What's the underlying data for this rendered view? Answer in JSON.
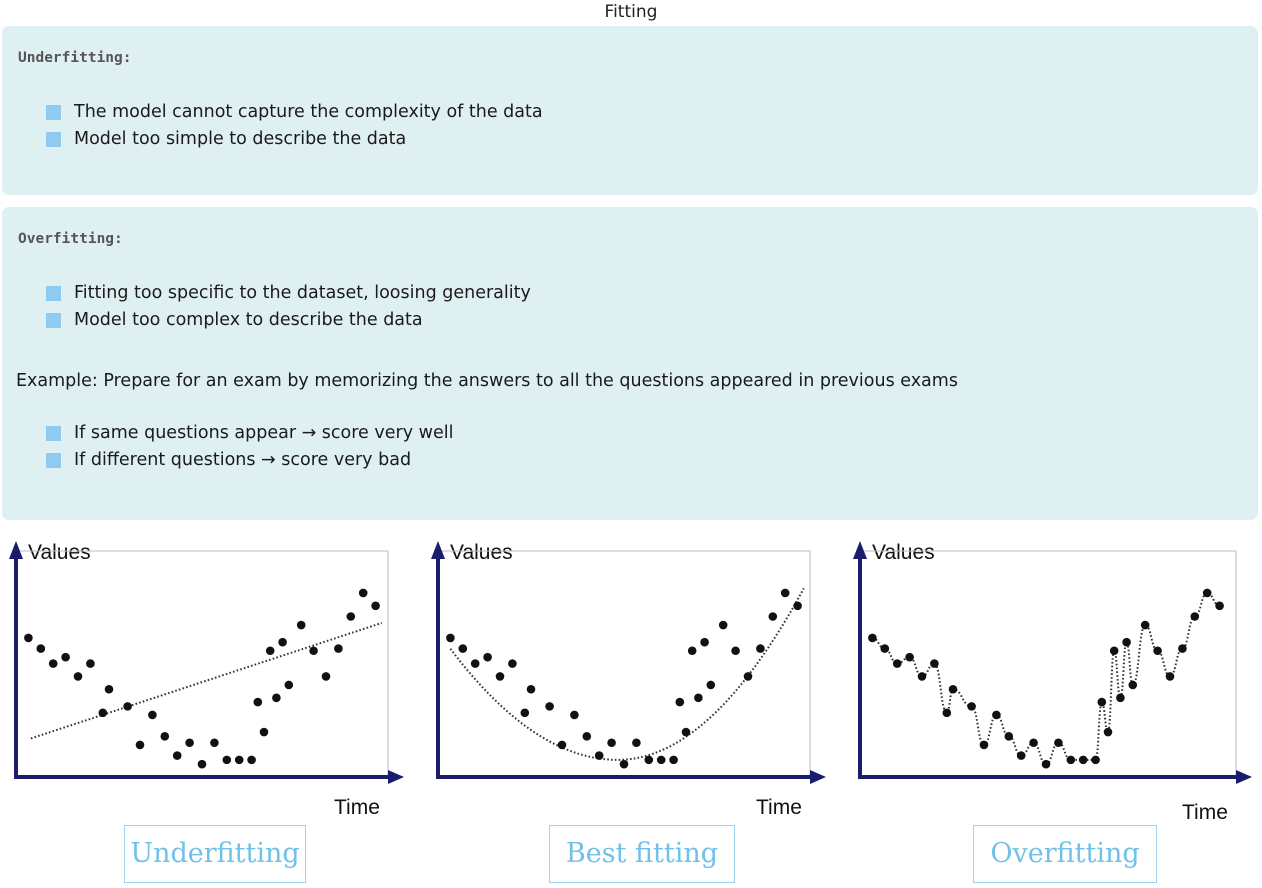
{
  "title": "Fitting",
  "underfitting_box": {
    "heading": "Underfitting:",
    "bullets": [
      "The model cannot capture the complexity of the data",
      "Model too simple to describe the data"
    ]
  },
  "overfitting_box": {
    "heading": "Overfitting:",
    "bullets": [
      "Fitting too specific to the dataset, loosing generality",
      "Model too complex to describe the data"
    ],
    "example": "Example: Prepare for an exam by memorizing the answers to all the questions appeared in previous exams",
    "example_bullets": [
      "If same questions appear → score very well",
      "If different questions → score very bad"
    ]
  },
  "colors": {
    "box_bg": "#dff0f3",
    "bullet": "#8fcaf0",
    "caption": "#6fc1ea",
    "axis": "#1c1c6e"
  },
  "panels": [
    {
      "y_label": "Values",
      "x_label": "Time",
      "caption": "Underfitting"
    },
    {
      "y_label": "Values",
      "x_label": "Time",
      "caption": "Best fitting"
    },
    {
      "y_label": "Values",
      "x_label": "Time",
      "caption": "Overfitting"
    }
  ],
  "chart_data": {
    "type": "scatter",
    "points_x": [
      1,
      2,
      3,
      4,
      5,
      6,
      7,
      7.5,
      9,
      10,
      11,
      12,
      13,
      14,
      15,
      16,
      17,
      18,
      19,
      19.5,
      20,
      20.5,
      21,
      21.5,
      22,
      23,
      24,
      25,
      26,
      27,
      28,
      29
    ],
    "points_y": [
      6.5,
      6.0,
      5.3,
      5.6,
      4.7,
      5.3,
      3.0,
      4.1,
      3.3,
      1.5,
      2.9,
      1.9,
      1.0,
      1.6,
      0.6,
      1.6,
      0.8,
      0.8,
      0.8,
      3.5,
      2.1,
      5.9,
      3.7,
      6.3,
      4.3,
      7.1,
      5.9,
      4.7,
      6.0,
      7.5,
      8.6,
      8.0
    ],
    "x_range": [
      0,
      30
    ],
    "y_range": [
      0,
      10
    ]
  }
}
